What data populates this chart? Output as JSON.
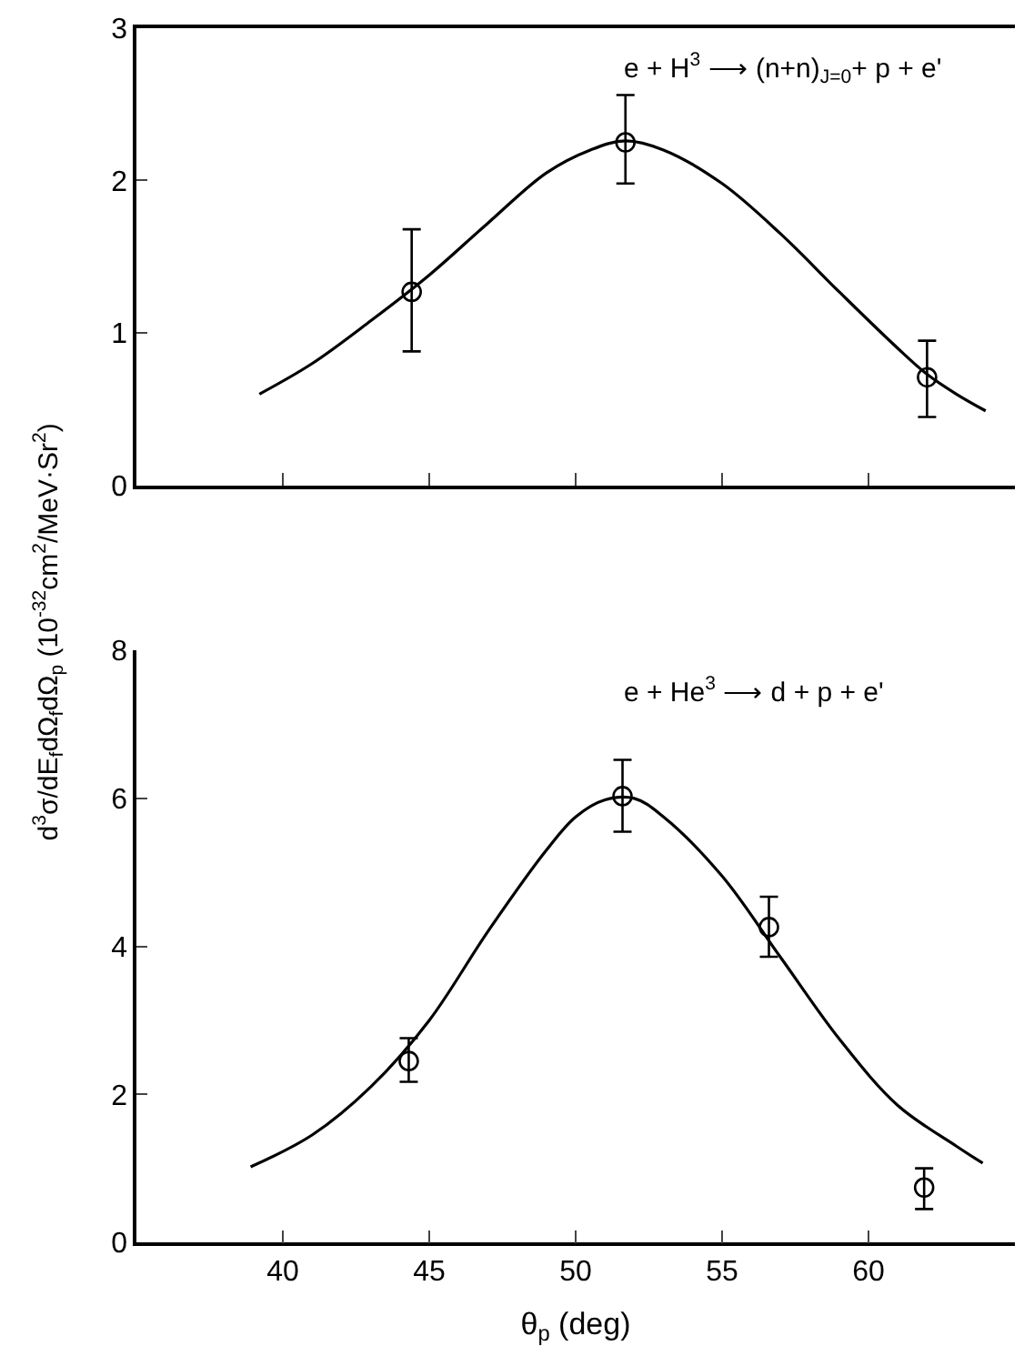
{
  "chart_data": [
    {
      "type": "scatter",
      "xlim": [
        35,
        65
      ],
      "xticks": [
        40,
        45,
        50,
        55,
        60
      ],
      "ylim": [
        0,
        3
      ],
      "yticks": [
        0,
        1,
        2,
        3
      ],
      "tick_labels": "y",
      "ylabel": "d$^{3}$σ/dE$_{f}$dΩ$_{f}$dΩ$_{p}$ (10$^{-32}$cm$^{2}$/MeV·Sr$^{2}$)",
      "annotations": [
        "e + H$^{3}$ ⟶ (n+n)$_{J=0}$+ p + e'"
      ],
      "series": [
        {
          "color": "#000000",
          "marker": "circle",
          "x": [
            44.4,
            51.7,
            62.0
          ],
          "values": [
            1.27,
            2.25,
            0.71
          ],
          "errors": [
            [
              0.88,
              1.68
            ],
            [
              1.98,
              2.56
            ],
            [
              0.45,
              0.95
            ]
          ]
        },
        {
          "type": "line",
          "color": "#000000",
          "marker": "none",
          "line_style": "solid",
          "x": [
            39.2,
            41,
            43,
            45,
            47,
            49,
            50.5,
            51.7,
            53,
            55,
            57,
            59,
            61,
            62,
            63,
            64
          ],
          "values": [
            0.6,
            0.8,
            1.08,
            1.38,
            1.72,
            2.05,
            2.2,
            2.26,
            2.2,
            1.98,
            1.65,
            1.27,
            0.9,
            0.73,
            0.6,
            0.49
          ]
        }
      ]
    },
    {
      "type": "scatter",
      "xlim": [
        35,
        65
      ],
      "xticks": [
        40,
        45,
        50,
        55,
        60
      ],
      "ylim": [
        0,
        8
      ],
      "yticks": [
        0,
        2,
        4,
        6,
        8
      ],
      "xlabel": "θ$_{p}$ (deg)",
      "annotations": [
        "e + He$^{3}$ ⟶ d + p + e'"
      ],
      "series": [
        {
          "color": "#000000",
          "marker": "circle",
          "x": [
            44.3,
            51.6,
            56.6,
            61.9
          ],
          "values": [
            2.45,
            6.03,
            4.26,
            0.74
          ],
          "errors": [
            [
              2.17,
              2.76
            ],
            [
              5.55,
              6.52
            ],
            [
              3.86,
              4.67
            ],
            [
              0.45,
              1.0
            ]
          ]
        },
        {
          "type": "line",
          "color": "#000000",
          "marker": "none",
          "line_style": "solid",
          "x": [
            38.9,
            41,
            43,
            45,
            47,
            49,
            50,
            51,
            52,
            53,
            55,
            57,
            59,
            61,
            63,
            63.9
          ],
          "values": [
            1.02,
            1.45,
            2.1,
            3.0,
            4.2,
            5.3,
            5.75,
            5.98,
            6.0,
            5.75,
            4.95,
            3.85,
            2.75,
            1.85,
            1.3,
            1.07
          ]
        }
      ]
    }
  ]
}
